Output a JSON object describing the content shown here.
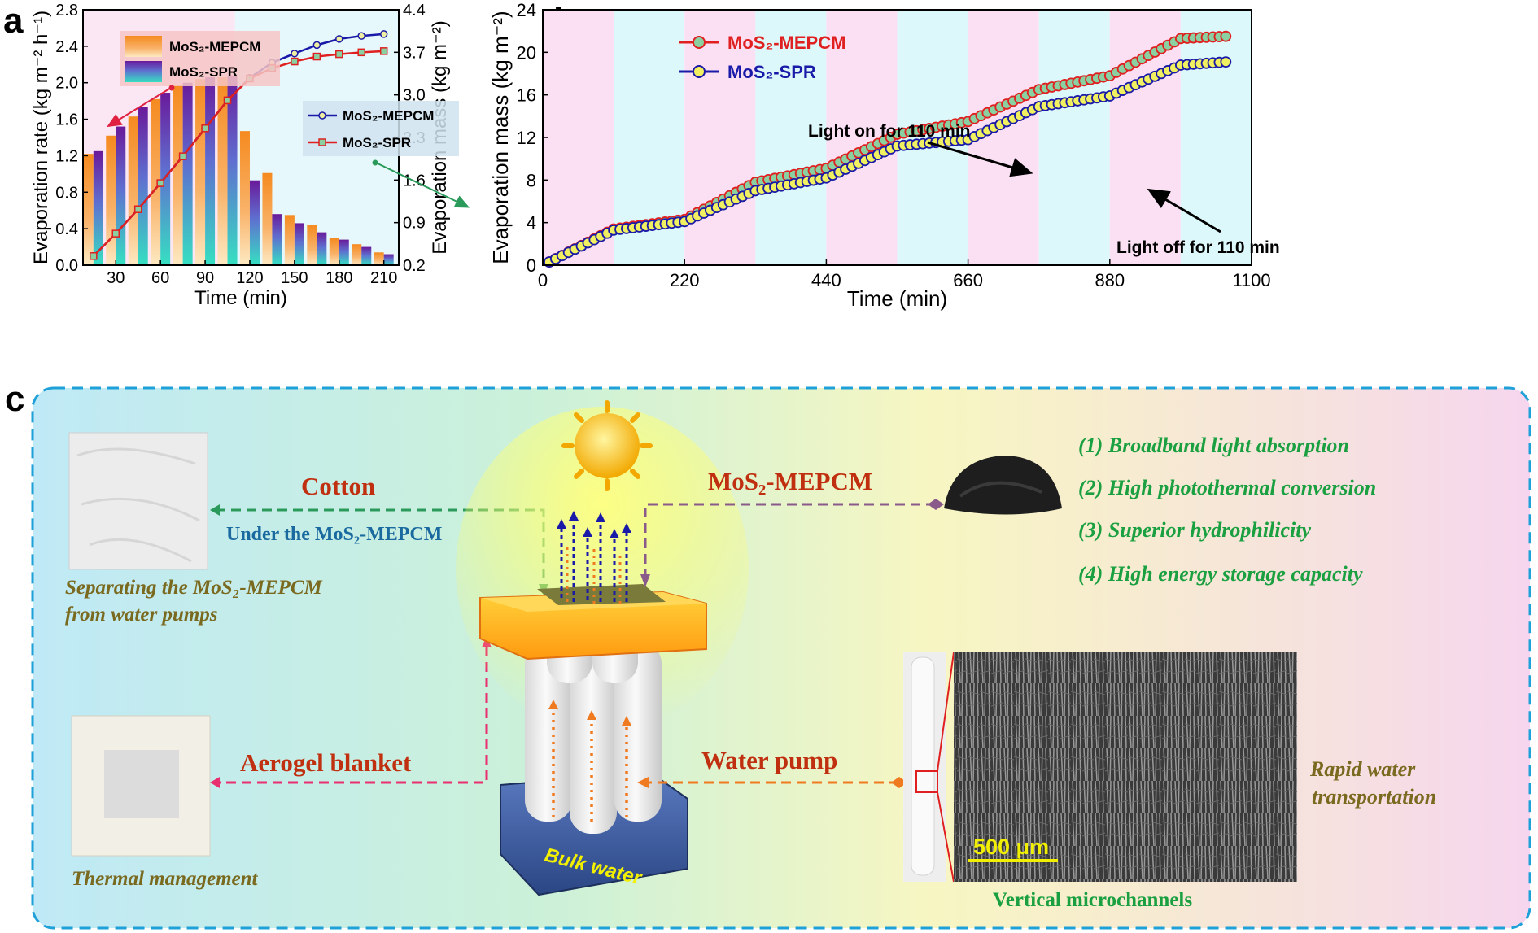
{
  "panels": {
    "a": "a",
    "b": "b",
    "c": "c"
  },
  "chart_data": [
    {
      "panel": "a",
      "type": "bar+line",
      "xlabel": "Time (min)",
      "ylabel_left": "Evaporation rate (kg m⁻² h⁻¹)",
      "ylabel_right": "Evaporation mass (kg m⁻²)",
      "xlim": [
        8,
        220
      ],
      "ylim_left": [
        0,
        2.8
      ],
      "ylim_right": [
        0.2,
        4.4
      ],
      "x_ticks": [
        30,
        60,
        90,
        120,
        150,
        180,
        210
      ],
      "y_ticks_left": [
        0.0,
        0.4,
        0.8,
        1.2,
        1.6,
        2.0,
        2.4,
        2.8
      ],
      "y_ticks_right": [
        0.2,
        0.9,
        1.6,
        2.3,
        3.0,
        3.7,
        4.4
      ],
      "light_on_until": 110,
      "bar_legend": [
        {
          "name": "MoS₂-MEPCM",
          "colors": [
            "#f58a1f",
            "#fde3a8"
          ]
        },
        {
          "name": "MoS₂-SPR",
          "colors": [
            "#6a1a9a",
            "#36e0c2"
          ]
        }
      ],
      "line_legend": [
        {
          "name": "MoS₂-MEPCM",
          "color": "#1a1aa8"
        },
        {
          "name": "MoS₂-SPR",
          "color": "#e02020"
        }
      ],
      "bar_x": [
        15,
        30,
        45,
        60,
        75,
        90,
        105,
        120,
        135,
        150,
        165,
        180,
        195,
        210
      ],
      "bars_mepcm": [
        1.22,
        1.42,
        1.63,
        1.82,
        1.98,
        2.04,
        2.06,
        1.47,
        1.01,
        0.55,
        0.44,
        0.3,
        0.23,
        0.14
      ],
      "bars_spr": [
        1.25,
        1.52,
        1.73,
        1.89,
        2.0,
        2.06,
        2.08,
        0.93,
        0.56,
        0.46,
        0.36,
        0.28,
        0.2,
        0.12
      ],
      "line_x": [
        15,
        30,
        45,
        60,
        75,
        90,
        105,
        120,
        135,
        150,
        165,
        180,
        195,
        210
      ],
      "line_mepcm": [
        0.35,
        0.72,
        1.12,
        1.55,
        1.99,
        2.45,
        2.91,
        3.28,
        3.53,
        3.68,
        3.82,
        3.92,
        3.97,
        4.0
      ],
      "line_spr": [
        0.35,
        0.72,
        1.12,
        1.55,
        1.99,
        2.45,
        2.91,
        3.27,
        3.44,
        3.55,
        3.63,
        3.67,
        3.7,
        3.72
      ],
      "annotation_arrows": [
        "left",
        "right"
      ]
    },
    {
      "panel": "b",
      "type": "line",
      "xlabel": "Time (min)",
      "ylabel": "Evaporation mass (kg m⁻²)",
      "xlim": [
        0,
        1100
      ],
      "ylim": [
        0,
        24
      ],
      "x_ticks": [
        0,
        220,
        440,
        660,
        880,
        1100
      ],
      "y_ticks": [
        0,
        4,
        8,
        12,
        16,
        20,
        24
      ],
      "cycle_length": 110,
      "legend": [
        {
          "name": "MoS₂-MEPCM",
          "color": "#e02020"
        },
        {
          "name": "MoS₂-SPR",
          "color": "#1a1aa8"
        }
      ],
      "annotations": [
        "Light on for 110 min",
        "Light off for 110 min"
      ],
      "series": [
        {
          "name": "MoS₂-MEPCM",
          "keypoints": [
            [
              10,
              0.3
            ],
            [
              110,
              3.4
            ],
            [
              220,
              4.3
            ],
            [
              330,
              7.8
            ],
            [
              440,
              9.1
            ],
            [
              550,
              12.3
            ],
            [
              660,
              13.5
            ],
            [
              770,
              16.5
            ],
            [
              880,
              17.8
            ],
            [
              990,
              21.3
            ],
            [
              1060,
              21.5
            ]
          ]
        },
        {
          "name": "MoS₂-SPR",
          "keypoints": [
            [
              10,
              0.3
            ],
            [
              110,
              3.3
            ],
            [
              220,
              4.1
            ],
            [
              330,
              7.0
            ],
            [
              440,
              8.2
            ],
            [
              550,
              11.2
            ],
            [
              660,
              11.8
            ],
            [
              770,
              14.9
            ],
            [
              880,
              15.9
            ],
            [
              990,
              18.8
            ],
            [
              1060,
              19.1
            ]
          ]
        }
      ]
    }
  ],
  "schematic": {
    "cotton": "Cotton",
    "under_label": "Under the MoS₂-MEPCM",
    "mepcm_title": "MoS₂-MEPCM",
    "aerogel": "Aerogel blanket",
    "water_pump": "Water pump",
    "bulk_water": "Bulk water",
    "scale_bar": "500 μm",
    "vertical": "Vertical microchannels",
    "caption_sep_1": "Separating the MoS₂-MEPCM",
    "caption_sep_2": "from water pumps",
    "caption_thermal": "Thermal management",
    "caption_rapid_1": "Rapid water",
    "caption_rapid_2": "transportation",
    "features": [
      "(1) Broadband light absorption",
      "(2) High photothermal conversion",
      "(3) Superior hydrophilicity",
      "(4) High energy storage capacity"
    ]
  }
}
